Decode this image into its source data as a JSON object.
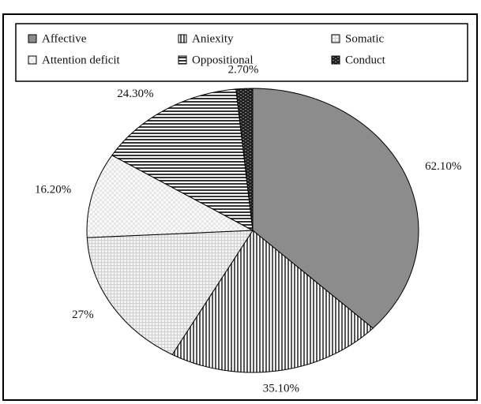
{
  "chart_data": {
    "type": "pie",
    "categories": [
      "Affective",
      "Aniexity",
      "Somatic",
      "Attention deficit",
      "Oppositional",
      "Conduct"
    ],
    "values": [
      62.1,
      35.1,
      27,
      16.2,
      24.3,
      2.7
    ],
    "value_labels": [
      "62.10%",
      "35.10%",
      "27%",
      "16.20%",
      "24.30%",
      "2.70%"
    ],
    "colors": [
      "#8c8c8c",
      "#555555",
      "#cfcfcf",
      "#e6e6e6",
      "#333333",
      "#222222"
    ],
    "legend": "top"
  }
}
